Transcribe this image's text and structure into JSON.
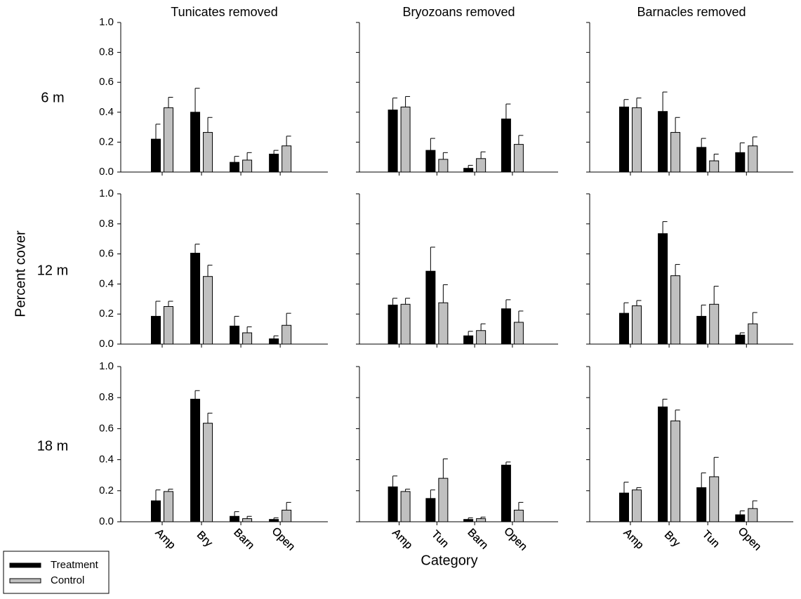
{
  "y_label": "Percent cover",
  "x_label": "Category",
  "row_labels": [
    "6 m",
    "12 m",
    "18 m"
  ],
  "chart_data": [
    {
      "type": "bar",
      "title": "Tunicates removed",
      "categories": [
        "Amp",
        "Bry",
        "Barn",
        "Open"
      ],
      "series": [
        {
          "name": "Treatment",
          "color": "#000000",
          "values": [
            0.22,
            0.4,
            0.065,
            0.12
          ],
          "errors": [
            0.1,
            0.16,
            0.04,
            0.025
          ]
        },
        {
          "name": "Control",
          "color": "#c0c0c0",
          "values": [
            0.43,
            0.265,
            0.08,
            0.175
          ],
          "errors": [
            0.07,
            0.1,
            0.05,
            0.065
          ]
        }
      ],
      "ylim": [
        0,
        1
      ],
      "yticks": [
        {
          "value": 0,
          "label": "0.0"
        },
        0.2,
        0.4,
        0.6,
        0.8,
        {
          "value": 1,
          "label": "1.0"
        }
      ],
      "ytick_labels": true
    },
    {
      "type": "bar",
      "title": "Bryozoans removed",
      "categories": [
        "Amp",
        "Tun",
        "Barn",
        "Open"
      ],
      "series": [
        {
          "name": "Treatment",
          "color": "#000000",
          "values": [
            0.415,
            0.145,
            0.025,
            0.355
          ],
          "errors": [
            0.08,
            0.08,
            0.02,
            0.1
          ]
        },
        {
          "name": "Control",
          "color": "#c0c0c0",
          "values": [
            0.435,
            0.085,
            0.09,
            0.185
          ],
          "errors": [
            0.07,
            0.045,
            0.045,
            0.06
          ]
        }
      ],
      "ylim": [
        0,
        1
      ],
      "yticks": [
        0,
        0.2,
        0.4,
        0.6,
        0.8,
        1
      ],
      "ytick_labels": false
    },
    {
      "type": "bar",
      "title": "Barnacles removed",
      "categories": [
        "Amp",
        "Bry",
        "Tun",
        "Open"
      ],
      "series": [
        {
          "name": "Treatment",
          "color": "#000000",
          "values": [
            0.435,
            0.405,
            0.165,
            0.13
          ],
          "errors": [
            0.05,
            0.13,
            0.06,
            0.065
          ]
        },
        {
          "name": "Control",
          "color": "#c0c0c0",
          "values": [
            0.43,
            0.265,
            0.075,
            0.175
          ],
          "errors": [
            0.065,
            0.1,
            0.045,
            0.06
          ]
        }
      ],
      "ylim": [
        0,
        1
      ],
      "yticks": [
        0,
        0.2,
        0.4,
        0.6,
        0.8,
        1
      ],
      "ytick_labels": false
    },
    {
      "type": "bar",
      "categories": [
        "Amp",
        "Bry",
        "Barn",
        "Open"
      ],
      "series": [
        {
          "name": "Treatment",
          "color": "#000000",
          "values": [
            0.185,
            0.605,
            0.12,
            0.035
          ],
          "errors": [
            0.1,
            0.06,
            0.065,
            0.02
          ]
        },
        {
          "name": "Control",
          "color": "#c0c0c0",
          "values": [
            0.25,
            0.45,
            0.075,
            0.125
          ],
          "errors": [
            0.035,
            0.075,
            0.04,
            0.08
          ]
        }
      ],
      "ylim": [
        0,
        1
      ],
      "yticks": [
        {
          "value": 0,
          "label": "0.0"
        },
        0.2,
        0.4,
        0.6,
        0.8,
        {
          "value": 1,
          "label": "1.0"
        }
      ],
      "ytick_labels": true
    },
    {
      "type": "bar",
      "categories": [
        "Amp",
        "Tun",
        "Barn",
        "Open"
      ],
      "series": [
        {
          "name": "Treatment",
          "color": "#000000",
          "values": [
            0.26,
            0.485,
            0.055,
            0.235
          ],
          "errors": [
            0.045,
            0.16,
            0.03,
            0.06
          ]
        },
        {
          "name": "Control",
          "color": "#c0c0c0",
          "values": [
            0.265,
            0.275,
            0.09,
            0.145
          ],
          "errors": [
            0.04,
            0.12,
            0.045,
            0.075
          ]
        }
      ],
      "ylim": [
        0,
        1
      ],
      "yticks": [
        0,
        0.2,
        0.4,
        0.6,
        0.8,
        1
      ],
      "ytick_labels": false
    },
    {
      "type": "bar",
      "categories": [
        "Amp",
        "Bry",
        "Tun",
        "Open"
      ],
      "series": [
        {
          "name": "Treatment",
          "color": "#000000",
          "values": [
            0.205,
            0.735,
            0.185,
            0.06
          ],
          "errors": [
            0.07,
            0.08,
            0.075,
            0.015
          ]
        },
        {
          "name": "Control",
          "color": "#c0c0c0",
          "values": [
            0.255,
            0.455,
            0.265,
            0.135
          ],
          "errors": [
            0.035,
            0.075,
            0.12,
            0.075
          ]
        }
      ],
      "ylim": [
        0,
        1
      ],
      "yticks": [
        0,
        0.2,
        0.4,
        0.6,
        0.8,
        1
      ],
      "ytick_labels": false
    },
    {
      "type": "bar",
      "categories": [
        "Amp",
        "Bry",
        "Barn",
        "Open"
      ],
      "series": [
        {
          "name": "Treatment",
          "color": "#000000",
          "values": [
            0.135,
            0.79,
            0.035,
            0.015
          ],
          "errors": [
            0.07,
            0.055,
            0.03,
            0.01
          ]
        },
        {
          "name": "Control",
          "color": "#c0c0c0",
          "values": [
            0.195,
            0.635,
            0.02,
            0.075
          ],
          "errors": [
            0.015,
            0.065,
            0.015,
            0.05
          ]
        }
      ],
      "ylim": [
        0,
        1
      ],
      "yticks": [
        {
          "value": 0,
          "label": "0.0"
        },
        0.2,
        0.4,
        0.6,
        0.8,
        {
          "value": 1,
          "label": "1.0"
        }
      ],
      "ytick_labels": true
    },
    {
      "type": "bar",
      "categories": [
        "Amp",
        "Tun",
        "Barn",
        "Open"
      ],
      "series": [
        {
          "name": "Treatment",
          "color": "#000000",
          "values": [
            0.225,
            0.15,
            0.015,
            0.365
          ],
          "errors": [
            0.07,
            0.055,
            0.01,
            0.02
          ]
        },
        {
          "name": "Control",
          "color": "#c0c0c0",
          "values": [
            0.195,
            0.28,
            0.02,
            0.075
          ],
          "errors": [
            0.015,
            0.125,
            0.01,
            0.05
          ]
        }
      ],
      "ylim": [
        0,
        1
      ],
      "yticks": [
        0,
        0.2,
        0.4,
        0.6,
        0.8,
        1
      ],
      "ytick_labels": false
    },
    {
      "type": "bar",
      "categories": [
        "Amp",
        "Bry",
        "Tun",
        "Open"
      ],
      "series": [
        {
          "name": "Treatment",
          "color": "#000000",
          "values": [
            0.185,
            0.74,
            0.22,
            0.045
          ],
          "errors": [
            0.07,
            0.05,
            0.095,
            0.025
          ]
        },
        {
          "name": "Control",
          "color": "#c0c0c0",
          "values": [
            0.205,
            0.65,
            0.29,
            0.085
          ],
          "errors": [
            0.015,
            0.07,
            0.125,
            0.05
          ]
        }
      ],
      "ylim": [
        0,
        1
      ],
      "yticks": [
        0,
        0.2,
        0.4,
        0.6,
        0.8,
        1
      ],
      "ytick_labels": false
    }
  ]
}
